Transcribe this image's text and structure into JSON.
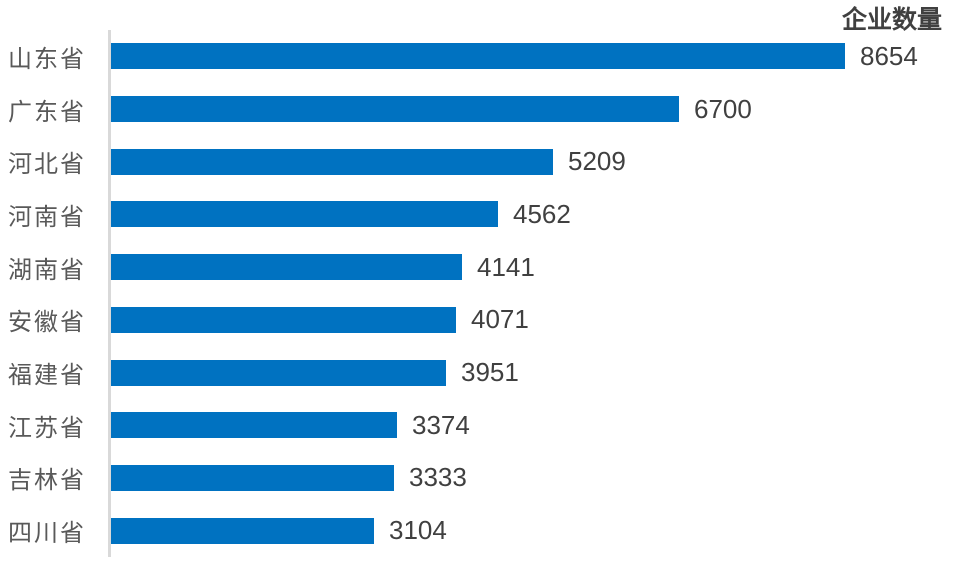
{
  "chart_data": {
    "type": "bar",
    "orientation": "horizontal",
    "title": "企业数量",
    "categories": [
      "山东省",
      "广东省",
      "河北省",
      "河南省",
      "湖南省",
      "安徽省",
      "福建省",
      "江苏省",
      "吉林省",
      "四川省"
    ],
    "values": [
      8654,
      6700,
      5209,
      4562,
      4141,
      4071,
      3951,
      3374,
      3333,
      3104
    ],
    "xlabel": "",
    "ylabel": "",
    "xlim": [
      0,
      10000
    ],
    "grid": false,
    "legend": "none",
    "value_labels": true,
    "sort_order": "descending",
    "bar_color": "#0072c1",
    "axis_line_color": "#d9d9d9",
    "category_label_color": "#595959",
    "value_label_color": "#404040",
    "title_color": "#404040"
  }
}
